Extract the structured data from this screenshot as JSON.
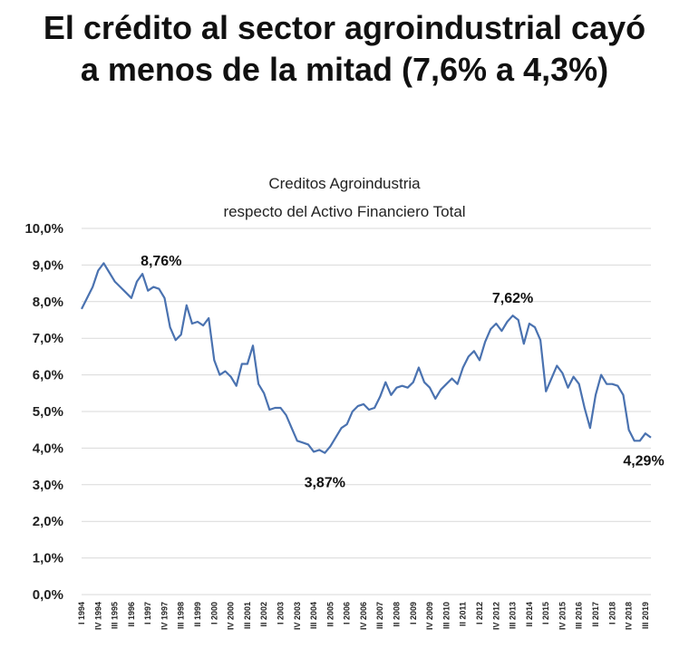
{
  "headline": {
    "line1": "El crédito al sector agroindustrial cayó",
    "line2": "a menos de la mitad (7,6% a 4,3%)"
  },
  "chart_data": {
    "type": "line",
    "title": [
      "Creditos Agroindustria",
      "respecto del Activo Financiero Total"
    ],
    "xlabel": "",
    "ylabel": "",
    "ylim": [
      0,
      10
    ],
    "yticks": [
      "0,0%",
      "1,0%",
      "2,0%",
      "3,0%",
      "4,0%",
      "5,0%",
      "6,0%",
      "7,0%",
      "8,0%",
      "9,0%",
      "10,0%"
    ],
    "grid": true,
    "legend": "none",
    "line_color": "#4a72b0",
    "x_tick_labels": [
      "I 1994",
      "IV 1994",
      "III 1995",
      "II 1996",
      "I 1997",
      "IV 1997",
      "III 1998",
      "II 1999",
      "I 2000",
      "IV 2000",
      "III 2001",
      "II 2002",
      "I 2003",
      "IV 2003",
      "III 2004",
      "II 2005",
      "I 2006",
      "IV 2006",
      "III 2007",
      "II 2008",
      "I 2009",
      "IV 2009",
      "III 2010",
      "II 2011",
      "I 2012",
      "IV 2012",
      "III 2013",
      "II 2014",
      "I 2015",
      "IV 2015",
      "III 2016",
      "II 2017",
      "I 2018",
      "IV 2018",
      "III 2019"
    ],
    "series": [
      {
        "values": [
          7.8,
          8.1,
          8.4,
          8.85,
          9.05,
          8.8,
          8.55,
          8.4,
          8.25,
          8.1,
          8.55,
          8.76,
          8.3,
          8.4,
          8.35,
          8.1,
          7.3,
          6.95,
          7.1,
          7.9,
          7.4,
          7.45,
          7.35,
          7.55,
          6.4,
          6.0,
          6.1,
          5.95,
          5.7,
          6.3,
          6.3,
          6.8,
          5.75,
          5.5,
          5.05,
          5.1,
          5.1,
          4.9,
          4.55,
          4.2,
          4.15,
          4.1,
          3.9,
          3.95,
          3.87,
          4.05,
          4.3,
          4.55,
          4.65,
          5.0,
          5.15,
          5.2,
          5.05,
          5.1,
          5.4,
          5.8,
          5.45,
          5.65,
          5.7,
          5.65,
          5.8,
          6.2,
          5.8,
          5.65,
          5.35,
          5.6,
          5.75,
          5.9,
          5.75,
          6.2,
          6.5,
          6.65,
          6.4,
          6.9,
          7.25,
          7.4,
          7.2,
          7.45,
          7.62,
          7.5,
          6.85,
          7.4,
          7.3,
          6.95,
          5.55,
          5.9,
          6.25,
          6.05,
          5.65,
          5.95,
          5.75,
          5.1,
          4.55,
          5.45,
          6.0,
          5.75,
          5.75,
          5.7,
          5.45,
          4.5,
          4.2,
          4.2,
          4.4,
          4.29
        ]
      }
    ],
    "annotations": [
      "8,76%",
      "3,87%",
      "7,62%",
      "4,29%"
    ]
  }
}
